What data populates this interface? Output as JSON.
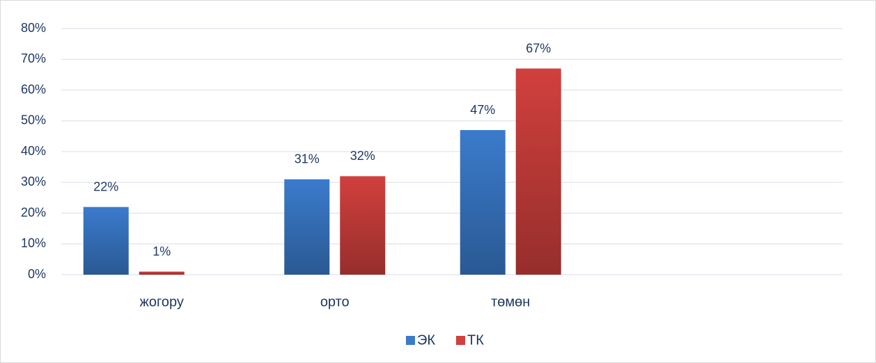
{
  "chart_data": {
    "type": "bar",
    "categories": [
      "жогору",
      "орто",
      "төмөн"
    ],
    "series": [
      {
        "name": "ЭК",
        "color": "#3b7bcc",
        "values": [
          22,
          31,
          47
        ],
        "value_labels": [
          "22%",
          "31%",
          "47%"
        ]
      },
      {
        "name": "ТК",
        "color": "#d1403d",
        "values": [
          1,
          32,
          67
        ],
        "value_labels": [
          "1%",
          "32%",
          "67%"
        ]
      }
    ],
    "ylim": [
      0,
      80
    ],
    "yticks": [
      {
        "value": 0,
        "label": "0%"
      },
      {
        "value": 10,
        "label": "10%"
      },
      {
        "value": 20,
        "label": "20%"
      },
      {
        "value": 30,
        "label": "30%"
      },
      {
        "value": 40,
        "label": "40%"
      },
      {
        "value": 50,
        "label": "50%"
      },
      {
        "value": 60,
        "label": "60%"
      },
      {
        "value": 70,
        "label": "70%"
      },
      {
        "value": 80,
        "label": "80%"
      }
    ],
    "grid": true,
    "legend": "bottom"
  }
}
